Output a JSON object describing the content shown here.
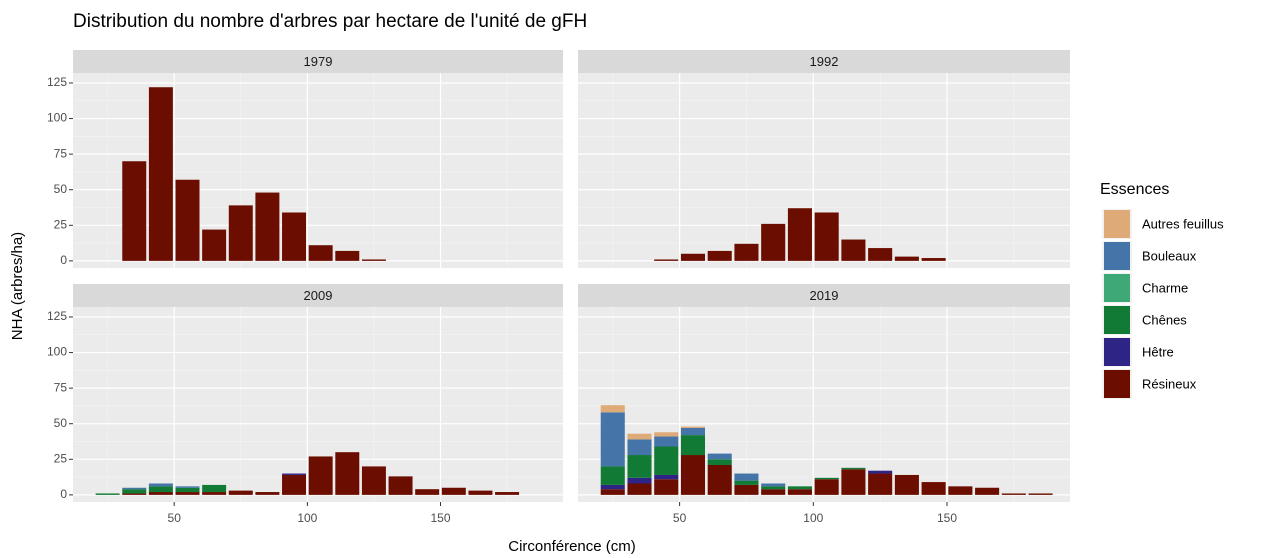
{
  "chart_data": {
    "type": "bar",
    "title": "Distribution du nombre d'arbres par hectare de l'unité de gFH",
    "xlabel": "Circonférence (cm)",
    "ylabel": "NHA (arbres/ha)",
    "legend_title": "Essences",
    "xlim": [
      12,
      196
    ],
    "xticks": [
      50,
      100,
      150
    ],
    "ylim": [
      -5,
      132
    ],
    "yticks": [
      0,
      25,
      50,
      75,
      100,
      125
    ],
    "grid": true,
    "categories": [
      25,
      35,
      45,
      55,
      65,
      75,
      85,
      95,
      105,
      115,
      125,
      135,
      145,
      155,
      165,
      175,
      185
    ],
    "series": [
      {
        "name": "Autres feuillus",
        "color": "#deaa78"
      },
      {
        "name": "Bouleaux",
        "color": "#4575a8"
      },
      {
        "name": "Charme",
        "color": "#3fa877"
      },
      {
        "name": "Chênes",
        "color": "#117a35"
      },
      {
        "name": "Hêtre",
        "color": "#2e2486"
      },
      {
        "name": "Résineux",
        "color": "#6b0e00"
      }
    ],
    "panels": [
      {
        "title": "1979",
        "values": [
          [
            0,
            0,
            0,
            0,
            0,
            0,
            0,
            0,
            0,
            0,
            0,
            0,
            0,
            0,
            0,
            0,
            0
          ],
          [
            0,
            0,
            0,
            0,
            0,
            0,
            0,
            0,
            0,
            0,
            0,
            0,
            0,
            0,
            0,
            0,
            0
          ],
          [
            0,
            0,
            0,
            0,
            0,
            0,
            0,
            0,
            0,
            0,
            0,
            0,
            0,
            0,
            0,
            0,
            0
          ],
          [
            0,
            0,
            0,
            0,
            0,
            0,
            0,
            0,
            0,
            0,
            0,
            0,
            0,
            0,
            0,
            0,
            0
          ],
          [
            0,
            0,
            0,
            0,
            0,
            0,
            0,
            0,
            0,
            0,
            0,
            0,
            0,
            0,
            0,
            0,
            0
          ],
          [
            0,
            70,
            122,
            57,
            22,
            39,
            48,
            34,
            11,
            7,
            1,
            0,
            0,
            0,
            0,
            0,
            0
          ]
        ]
      },
      {
        "title": "1992",
        "values": [
          [
            0,
            0,
            0,
            0,
            0,
            0,
            0,
            0,
            0,
            0,
            0,
            0,
            0,
            0,
            0,
            0,
            0
          ],
          [
            0,
            0,
            0,
            0,
            0,
            0,
            0,
            0,
            0,
            0,
            0,
            0,
            0,
            0,
            0,
            0,
            0
          ],
          [
            0,
            0,
            0,
            0,
            0,
            0,
            0,
            0,
            0,
            0,
            0,
            0,
            0,
            0,
            0,
            0,
            0
          ],
          [
            0,
            0,
            0,
            0,
            0,
            0,
            0,
            0,
            0,
            0,
            0,
            0,
            0,
            0,
            0,
            0,
            0
          ],
          [
            0,
            0,
            0,
            0,
            0,
            0,
            0,
            0,
            0,
            0,
            0,
            0,
            0,
            0,
            0,
            0,
            0
          ],
          [
            0,
            0,
            1,
            5,
            7,
            12,
            26,
            37,
            34,
            15,
            9,
            3,
            2,
            0,
            0,
            0,
            0
          ]
        ]
      },
      {
        "title": "2009",
        "values": [
          [
            0,
            0,
            0,
            0,
            0,
            0,
            0,
            0,
            0,
            0,
            0,
            0,
            0,
            0,
            0,
            0,
            0
          ],
          [
            0,
            1,
            2,
            1,
            0,
            0,
            0,
            0,
            0,
            0,
            0,
            0,
            0,
            0,
            0,
            0,
            0
          ],
          [
            0,
            0,
            0,
            0,
            0,
            0,
            0,
            0,
            0,
            0,
            0,
            0,
            0,
            0,
            0,
            0,
            0
          ],
          [
            1,
            3,
            4,
            3,
            5,
            0,
            0,
            0,
            0,
            0,
            0,
            0,
            0,
            0,
            0,
            0,
            0
          ],
          [
            0,
            0,
            0,
            0,
            0,
            0,
            0,
            1,
            0,
            0,
            0,
            0,
            0,
            0,
            0,
            0,
            0
          ],
          [
            0,
            1,
            2,
            2,
            2,
            3,
            2,
            14,
            27,
            30,
            20,
            13,
            4,
            5,
            3,
            2,
            0
          ]
        ]
      },
      {
        "title": "2019",
        "values": [
          [
            5,
            4,
            3,
            1,
            0,
            0,
            0,
            0,
            0,
            0,
            0,
            0,
            0,
            0,
            0,
            0,
            0
          ],
          [
            38,
            11,
            7,
            5,
            4,
            5,
            2,
            0,
            0,
            0,
            0,
            0,
            0,
            0,
            0,
            0,
            0
          ],
          [
            0,
            0,
            0,
            0,
            0,
            0,
            0,
            0,
            0,
            0,
            0,
            0,
            0,
            0,
            0,
            0,
            0
          ],
          [
            13,
            16,
            20,
            14,
            4,
            3,
            2,
            2,
            1,
            1,
            0,
            0,
            0,
            0,
            0,
            0,
            0
          ],
          [
            3,
            4,
            3,
            0,
            0,
            0,
            0,
            0,
            0,
            0,
            2,
            0,
            0,
            0,
            0,
            0,
            0
          ],
          [
            4,
            8,
            11,
            28,
            21,
            7,
            4,
            4,
            11,
            18,
            15,
            14,
            9,
            6,
            5,
            1,
            1
          ]
        ]
      }
    ]
  }
}
